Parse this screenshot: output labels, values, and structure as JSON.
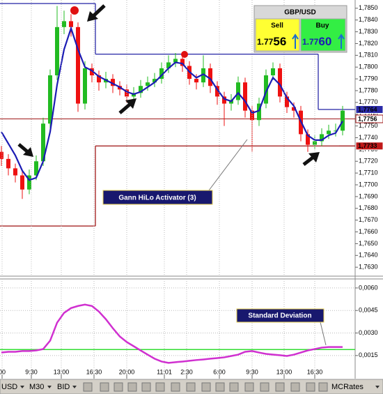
{
  "chart_data": [
    {
      "type": "candlestick",
      "open": [
        1.7728,
        1.7722,
        1.7714,
        1.7708,
        1.7696,
        1.7708,
        1.772,
        1.7752,
        1.7793,
        1.7834,
        1.7839,
        1.7834,
        1.7769,
        1.7799,
        1.7793,
        1.7787,
        1.779,
        1.7784,
        1.7781,
        1.7775,
        1.7778,
        1.7784,
        1.7787,
        1.779,
        1.7799,
        1.7804,
        1.7807,
        1.7801,
        1.779,
        1.7787,
        1.7799,
        1.7784,
        1.7775,
        1.7769,
        1.7772,
        1.7787,
        1.7763,
        1.7755,
        1.7769,
        1.7793,
        1.7799,
        1.7775,
        1.7766,
        1.7763,
        1.7743,
        1.7734,
        1.7737,
        1.7743,
        1.7746,
        1.7746
      ],
      "high": [
        1.7733,
        1.7726,
        1.7718,
        1.7712,
        1.7713,
        1.7725,
        1.7757,
        1.7798,
        1.7852,
        1.7848,
        1.7845,
        1.7838,
        1.7805,
        1.7803,
        1.7797,
        1.7796,
        1.7794,
        1.7788,
        1.7785,
        1.7783,
        1.7789,
        1.7792,
        1.7795,
        1.7804,
        1.781,
        1.7812,
        1.7811,
        1.7805,
        1.7794,
        1.781,
        1.7803,
        1.7788,
        1.7779,
        1.7777,
        1.7792,
        1.7791,
        1.7767,
        1.7774,
        1.7798,
        1.7804,
        1.7803,
        1.7779,
        1.777,
        1.7767,
        1.7747,
        1.7742,
        1.7748,
        1.7751,
        1.7752,
        1.7767
      ],
      "low": [
        1.7716,
        1.7708,
        1.7702,
        1.7688,
        1.7692,
        1.7704,
        1.7716,
        1.7748,
        1.7789,
        1.7828,
        1.7826,
        1.7762,
        1.7764,
        1.7787,
        1.778,
        1.7782,
        1.7778,
        1.7776,
        1.777,
        1.7771,
        1.7774,
        1.778,
        1.7783,
        1.7786,
        1.7795,
        1.78,
        1.7796,
        1.7785,
        1.7781,
        1.7783,
        1.7778,
        1.7768,
        1.775,
        1.7763,
        1.7768,
        1.7757,
        1.7728,
        1.775,
        1.7765,
        1.7789,
        1.777,
        1.7761,
        1.7757,
        1.7737,
        1.7728,
        1.773,
        1.7733,
        1.7739,
        1.7741,
        1.7742
      ],
      "close": [
        1.7722,
        1.7714,
        1.7708,
        1.7696,
        1.7708,
        1.772,
        1.7752,
        1.7793,
        1.7834,
        1.7839,
        1.7834,
        1.7769,
        1.7799,
        1.7793,
        1.7787,
        1.779,
        1.7784,
        1.7781,
        1.7775,
        1.7778,
        1.7784,
        1.7787,
        1.779,
        1.7799,
        1.7804,
        1.7807,
        1.7801,
        1.779,
        1.7787,
        1.7799,
        1.7784,
        1.7775,
        1.7769,
        1.7772,
        1.7787,
        1.7763,
        1.7755,
        1.7769,
        1.7793,
        1.7799,
        1.7775,
        1.7766,
        1.7763,
        1.7743,
        1.7734,
        1.7737,
        1.7743,
        1.7746,
        1.7746,
        1.7763
      ],
      "up_color": "#22bb22",
      "down_color": "#ee1111",
      "ma_values": [
        1.7745,
        1.7735,
        1.7725,
        1.7712,
        1.7704,
        1.7706,
        1.772,
        1.7745,
        1.7785,
        1.7815,
        1.7833,
        1.7815,
        1.78,
        1.7797,
        1.7792,
        1.7789,
        1.7786,
        1.7783,
        1.7779,
        1.7777,
        1.7779,
        1.7783,
        1.7787,
        1.7793,
        1.7799,
        1.7804,
        1.7803,
        1.7796,
        1.7791,
        1.7794,
        1.779,
        1.7781,
        1.7773,
        1.7771,
        1.7778,
        1.7771,
        1.7761,
        1.7763,
        1.7779,
        1.7791,
        1.7785,
        1.7774,
        1.7767,
        1.7754,
        1.7742,
        1.7738,
        1.7738,
        1.7742,
        1.7744,
        1.7754
      ],
      "ma_color": "#1c1cb4",
      "gann_high": [
        1.7854,
        1.7854,
        1.7854,
        1.7854,
        1.7854,
        1.7854,
        1.7854,
        1.7854,
        1.7854,
        1.7854,
        1.7854,
        1.7854,
        1.7854,
        1.7854,
        1.7811,
        1.7811,
        1.7811,
        1.7811,
        1.7811,
        1.7811,
        1.7811,
        1.7811,
        1.7811,
        1.7811,
        1.7811,
        1.7811,
        1.7811,
        1.7811,
        1.7811,
        1.7811,
        1.7811,
        1.7811,
        1.7811,
        1.7811,
        1.7811,
        1.7811,
        1.7811,
        1.7811,
        1.7811,
        1.7811,
        1.7811,
        1.7811,
        1.7811,
        1.7811,
        1.7811,
        1.7811,
        1.7764,
        1.7764,
        1.7764,
        1.7764
      ],
      "gann_high_color": "#2a2aa8",
      "gann_low": [
        1.7665,
        1.7665,
        1.7665,
        1.7665,
        1.7665,
        1.7665,
        1.7665,
        1.7665,
        1.7665,
        1.7665,
        1.7665,
        1.7665,
        1.7665,
        1.7665,
        1.7733,
        1.7733,
        1.7733,
        1.7733,
        1.7733,
        1.7733,
        1.7733,
        1.7733,
        1.7733,
        1.7733,
        1.7733,
        1.7733,
        1.7733,
        1.7733,
        1.7733,
        1.7733,
        1.7733,
        1.7733,
        1.7733,
        1.7733,
        1.7733,
        1.7733,
        1.7733,
        1.7733,
        1.7733,
        1.7733,
        1.7733,
        1.7733,
        1.7733,
        1.7733,
        1.7733,
        1.7733,
        1.7733,
        1.7733,
        1.7733,
        1.7733
      ],
      "gann_low_color": "#a01818",
      "xlim": [
        -0.2,
        50.8
      ],
      "ylim": [
        1.7623,
        1.7857
      ],
      "yticks": [
        {
          "value": 1.763,
          "label": "1,7630"
        },
        {
          "value": 1.764,
          "label": "1,7640"
        },
        {
          "value": 1.765,
          "label": "1,7650"
        },
        {
          "value": 1.766,
          "label": "1,7660"
        },
        {
          "value": 1.767,
          "label": "1,7670"
        },
        {
          "value": 1.768,
          "label": "1,7680"
        },
        {
          "value": 1.769,
          "label": "1,7690"
        },
        {
          "value": 1.77,
          "label": "1,7700"
        },
        {
          "value": 1.771,
          "label": "1,7710"
        },
        {
          "value": 1.772,
          "label": "1,7720"
        },
        {
          "value": 1.773,
          "label": "1,7730"
        },
        {
          "value": 1.774,
          "label": "1,7740"
        },
        {
          "value": 1.775,
          "label": "1,7750"
        },
        {
          "value": 1.776,
          "label": "1,7760"
        },
        {
          "value": 1.777,
          "label": "1,7770"
        },
        {
          "value": 1.778,
          "label": "1,7780"
        },
        {
          "value": 1.779,
          "label": "1,7790"
        },
        {
          "value": 1.78,
          "label": "1,7800"
        },
        {
          "value": 1.781,
          "label": "1,7810"
        },
        {
          "value": 1.782,
          "label": "1,7820"
        },
        {
          "value": 1.783,
          "label": "1,7830"
        },
        {
          "value": 1.784,
          "label": "1,7840"
        },
        {
          "value": 1.785,
          "label": "1,7850"
        }
      ],
      "price_tags": [
        {
          "value": 1.7764,
          "label": "1,7764",
          "fill": "#2a2aa8",
          "text_color": "#ffffff",
          "line": false
        },
        {
          "value": 1.7756,
          "label": "1,7756",
          "fill": "#ffffff",
          "text_color": "#a01818",
          "line": true
        },
        {
          "value": 1.7733,
          "label": "1,7733",
          "fill": "#c01818",
          "text_color": "#ffffff",
          "line": false
        }
      ],
      "annotation": "Gann HiLo Activator (3)",
      "ticket": {
        "symbol": "GBP/USD",
        "sell_label": "Sell",
        "sell_main": "1.77",
        "sell_pips": "56",
        "buy_label": "Buy",
        "buy_main": "1.77",
        "buy_pips": "60"
      }
    },
    {
      "type": "line",
      "values": [
        0.0017,
        0.00175,
        0.00175,
        0.0018,
        0.0018,
        0.00184,
        0.00193,
        0.00249,
        0.00369,
        0.00434,
        0.00466,
        0.0048,
        0.00489,
        0.0048,
        0.00443,
        0.00392,
        0.00332,
        0.00277,
        0.0024,
        0.00212,
        0.00184,
        0.00156,
        0.00129,
        0.0011,
        0.00101,
        0.00106,
        0.0011,
        0.00115,
        0.0012,
        0.00124,
        0.00129,
        0.00133,
        0.00138,
        0.00147,
        0.00156,
        0.00175,
        0.0018,
        0.0017,
        0.00161,
        0.00156,
        0.00152,
        0.00147,
        0.00156,
        0.0017,
        0.00184,
        0.00193,
        0.00203,
        0.00207,
        0.00207,
        0.00207
      ],
      "color": "#d030d0",
      "hline": 0.0019,
      "hline_color": "#33dd33",
      "xlim": [
        -0.2,
        50.8
      ],
      "ylim": [
        0.0001,
        0.0066
      ],
      "yticks": [
        {
          "value": 0.0015,
          "label": "0,0015"
        },
        {
          "value": 0.003,
          "label": "0,0030"
        },
        {
          "value": 0.0045,
          "label": "0,0045"
        },
        {
          "value": 0.006,
          "label": "0,0060"
        }
      ],
      "xticks": [
        {
          "value": 0.1,
          "label": "00"
        },
        {
          "value": 4.3,
          "label": "9:30"
        },
        {
          "value": 8.6,
          "label": "13:00"
        },
        {
          "value": 13.3,
          "label": "16:30"
        },
        {
          "value": 18,
          "label": "20:00"
        },
        {
          "value": 23.4,
          "label": "11:01"
        },
        {
          "value": 26.6,
          "label": "2:30"
        },
        {
          "value": 31.3,
          "label": "6:00"
        },
        {
          "value": 36,
          "label": "9:30"
        },
        {
          "value": 40.6,
          "label": "13:00"
        },
        {
          "value": 45,
          "label": "16:30"
        }
      ],
      "grid": true,
      "annotation": "Standard Deviation"
    }
  ],
  "toolbar": {
    "symbol": "USD",
    "period": "M30",
    "price": "BID",
    "source": "MCRates"
  }
}
